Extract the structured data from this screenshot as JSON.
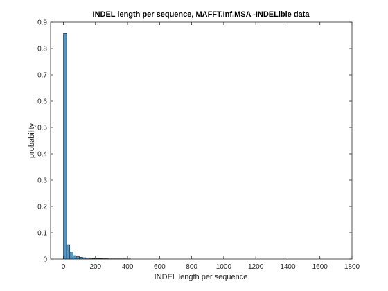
{
  "chart_data": {
    "type": "bar",
    "title": "INDEL length per sequence, MAFFT.Inf.MSA -INDELible data",
    "xlabel": "INDEL length per sequence",
    "ylabel": "probability",
    "xlim": [
      -80,
      1800
    ],
    "ylim": [
      0,
      0.9
    ],
    "xticks": [
      0,
      200,
      400,
      600,
      800,
      1000,
      1200,
      1400,
      1600,
      1800
    ],
    "yticks": [
      0,
      0.1,
      0.2,
      0.3,
      0.4,
      0.5,
      0.6,
      0.7,
      0.8,
      0.9
    ],
    "xtick_labels": [
      "0",
      "200",
      "400",
      "600",
      "800",
      "1000",
      "1200",
      "1400",
      "1600",
      "1800"
    ],
    "ytick_labels": [
      "0",
      "0.1",
      "0.2",
      "0.3",
      "0.4",
      "0.5",
      "0.6",
      "0.7",
      "0.8",
      "0.9"
    ],
    "bin_width": 20,
    "bin_starts": [
      0,
      20,
      40,
      60,
      80,
      100,
      120,
      140,
      160,
      180,
      200,
      220,
      240,
      260,
      280,
      300,
      320,
      340,
      360,
      380,
      400
    ],
    "values": [
      0.857,
      0.055,
      0.027,
      0.013,
      0.009,
      0.007,
      0.005,
      0.004,
      0.003,
      0.002,
      0.002,
      0.002,
      0.0015,
      0.0015,
      0.001,
      0.001,
      0.001,
      0.001,
      0.001,
      0.001,
      0.0008
    ],
    "bar_color": "#4f97c7",
    "edge_color": "#1a1a1a",
    "grid": false
  }
}
